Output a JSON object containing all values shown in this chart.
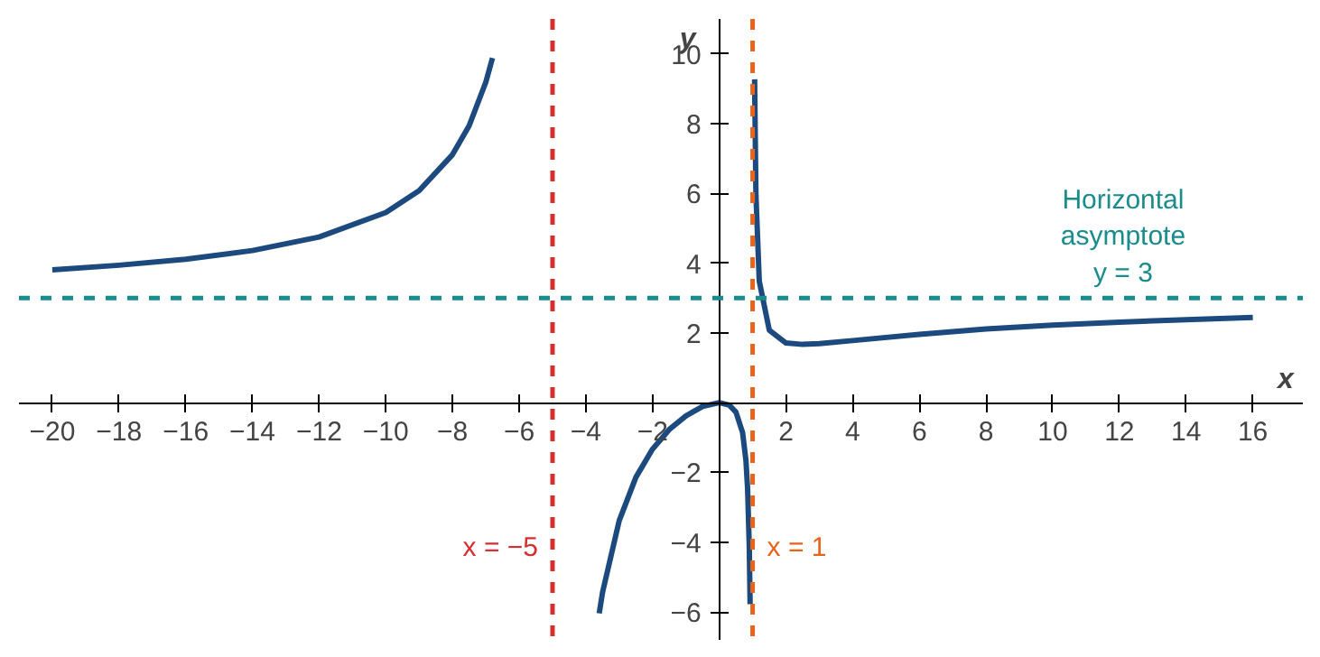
{
  "chart_data": {
    "type": "line",
    "xlabel": "x",
    "ylabel": "y",
    "series": [
      {
        "color": "#1c4a7e",
        "x": [
          -20,
          -18,
          -16,
          -14,
          -12,
          -10,
          -9,
          -8,
          -7.5,
          -7,
          -6.8
        ],
        "values": [
          3.81,
          3.94,
          4.11,
          4.36,
          4.75,
          5.45,
          6.08,
          7.11,
          7.94,
          9.19,
          9.88
        ]
      },
      {
        "color": "#1c4a7e",
        "x": [
          -3.6,
          -3.5,
          -3,
          -2.5,
          -2,
          -1.5,
          -1,
          -0.5,
          0,
          0.3,
          0.5,
          0.7,
          0.8,
          0.85,
          0.9,
          0.925
        ],
        "values": [
          -6.04,
          -5.44,
          -3.38,
          -2.14,
          -1.33,
          -0.77,
          -0.38,
          -0.11,
          0,
          -0.07,
          -0.27,
          -0.86,
          -1.66,
          -2.47,
          -4.12,
          -5.78
        ]
      },
      {
        "color": "#1c4a7e",
        "x": [
          1.06,
          1.1,
          1.2,
          1.5,
          2,
          2.5,
          3,
          4,
          6,
          8,
          10,
          12,
          14,
          16
        ],
        "values": [
          9.27,
          5.95,
          3.48,
          2.08,
          1.71,
          1.67,
          1.69,
          1.78,
          1.96,
          2.11,
          2.22,
          2.31,
          2.38,
          2.44
        ]
      }
    ],
    "xlim": [
      -21,
      17.5
    ],
    "ylim": [
      -6.8,
      11
    ],
    "xticks": [
      {
        "value": -20,
        "label": "−20"
      },
      {
        "value": -18,
        "label": "−18"
      },
      {
        "value": -16,
        "label": "−16"
      },
      {
        "value": -14,
        "label": "−14"
      },
      {
        "value": -12,
        "label": "−12"
      },
      {
        "value": -10,
        "label": "−10"
      },
      {
        "value": -8,
        "label": "−8"
      },
      {
        "value": -6,
        "label": "−6"
      },
      {
        "value": -4,
        "label": "−4"
      },
      {
        "value": -2,
        "label": "−2"
      },
      2,
      4,
      6,
      8,
      10,
      12,
      14,
      16
    ],
    "yticks": [
      {
        "value": -6,
        "label": "−6"
      },
      {
        "value": -4,
        "label": "−4"
      },
      {
        "value": -2,
        "label": "−2"
      },
      2,
      4,
      6,
      8,
      10
    ],
    "ref_lines": [
      {
        "axis": "x",
        "value": -5,
        "label": "x = −5",
        "color": "#d62f2f",
        "line_style": "dashed"
      },
      {
        "axis": "x",
        "value": 1,
        "label": "x = 1",
        "color": "#e8641b",
        "line_style": "dashed"
      },
      {
        "axis": "y",
        "value": 3,
        "label": "Horizontal\nasymptote\ny = 3",
        "color": "#1a8c8c",
        "line_style": "dashed"
      }
    ],
    "grid": false,
    "marker": "none",
    "line_style": "solid"
  }
}
